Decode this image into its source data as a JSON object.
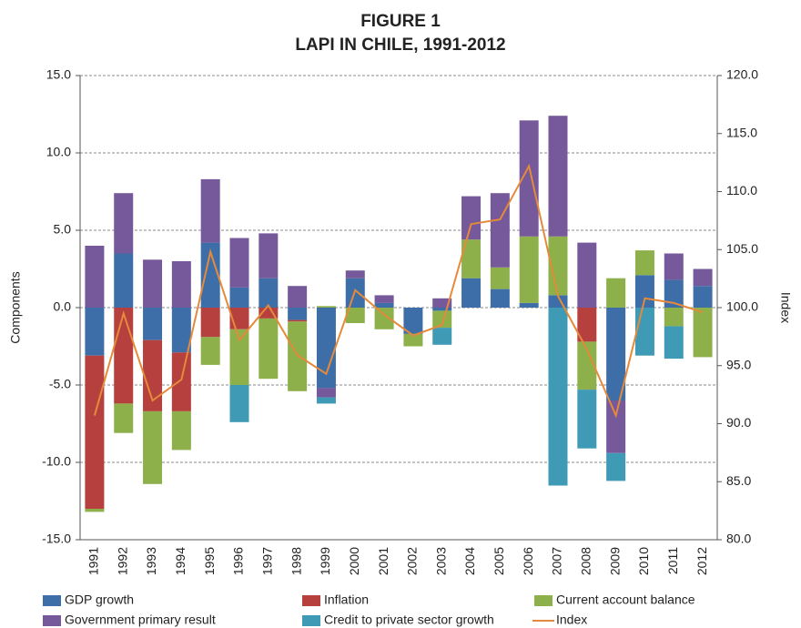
{
  "chart_data": {
    "type": "bar",
    "title": "FIGURE 1",
    "subtitle": "LAPI IN CHILE, 1991-2012",
    "y_label": "Components",
    "y2_label": "Index",
    "categories": [
      "1991",
      "1992",
      "1993",
      "1994",
      "1995",
      "1996",
      "1997",
      "1998",
      "1999",
      "2000",
      "2001",
      "2002",
      "2003",
      "2004",
      "2005",
      "2006",
      "2007",
      "2008",
      "2009",
      "2010",
      "2011",
      "2012"
    ],
    "series": [
      {
        "name": "GDP growth",
        "color": "#3e6ea8",
        "values": [
          -3.1,
          3.5,
          -2.1,
          -2.9,
          4.2,
          1.3,
          1.9,
          -0.8,
          -5.2,
          1.9,
          0.3,
          -1.7,
          -0.2,
          1.9,
          1.2,
          0.3,
          0.8,
          0,
          -6.0,
          2.1,
          1.8,
          1.4
        ]
      },
      {
        "name": "Inflation",
        "color": "#b5403d",
        "values": [
          -9.9,
          -6.2,
          -4.6,
          -3.8,
          -1.9,
          -1.4,
          -0.7,
          -0.1,
          0,
          0,
          0,
          0,
          0,
          0,
          0,
          0,
          0,
          -2.2,
          0,
          0,
          0,
          0
        ]
      },
      {
        "name": "Current account balance",
        "color": "#8db04b",
        "values": [
          -0.2,
          -1.9,
          -4.7,
          -2.5,
          -1.8,
          -3.6,
          -3.9,
          -4.5,
          0.1,
          -1.0,
          -1.4,
          -0.8,
          -1.1,
          2.5,
          1.4,
          4.3,
          3.8,
          -3.1,
          1.9,
          1.6,
          -1.2,
          -3.2
        ]
      },
      {
        "name": "Government primary result",
        "color": "#76599a",
        "values": [
          4.0,
          3.9,
          3.1,
          3.0,
          4.1,
          3.2,
          2.9,
          1.4,
          -0.6,
          0.5,
          0.5,
          0,
          0.6,
          2.8,
          4.8,
          7.5,
          7.8,
          4.2,
          -3.4,
          0,
          1.7,
          1.1
        ]
      },
      {
        "name": "Credit to private sector growth",
        "color": "#3f9bb5",
        "values": [
          0,
          0,
          0,
          0,
          0,
          -2.4,
          0,
          0,
          -0.4,
          0,
          0,
          0,
          -1.1,
          0,
          0,
          0,
          -11.5,
          -3.8,
          -1.8,
          -3.1,
          -2.1,
          0
        ]
      },
      {
        "name": "Index",
        "color": "#e48a3a",
        "type": "line",
        "axis": "y2",
        "values": [
          90.7,
          99.5,
          92.0,
          93.8,
          104.8,
          97.2,
          100.2,
          95.9,
          94.3,
          101.5,
          99.4,
          97.6,
          98.5,
          107.2,
          107.6,
          112.2,
          101.0,
          96.4,
          90.7,
          100.8,
          100.4,
          99.6
        ]
      }
    ],
    "ylim": [
      -15,
      15
    ],
    "yticks": [
      {
        "value": -15,
        "label": "-15.0"
      },
      {
        "value": -10,
        "label": "-10.0"
      },
      {
        "value": -5,
        "label": "-5.0"
      },
      {
        "value": 0,
        "label": "0.0"
      },
      {
        "value": 5,
        "label": "5.0"
      },
      {
        "value": 10,
        "label": "10.0"
      },
      {
        "value": 15,
        "label": "15.0"
      }
    ],
    "y2lim": [
      80,
      120
    ],
    "y2ticks": [
      {
        "value": 80,
        "label": "80.0"
      },
      {
        "value": 85,
        "label": "85.0"
      },
      {
        "value": 90,
        "label": "90.0"
      },
      {
        "value": 95,
        "label": "95.0"
      },
      {
        "value": 100,
        "label": "100.0"
      },
      {
        "value": 105,
        "label": "105.0"
      },
      {
        "value": 110,
        "label": "110.0"
      },
      {
        "value": 115,
        "label": "115.0"
      },
      {
        "value": 120,
        "label": "120.0"
      }
    ],
    "grid": true,
    "legend": "bottom"
  }
}
